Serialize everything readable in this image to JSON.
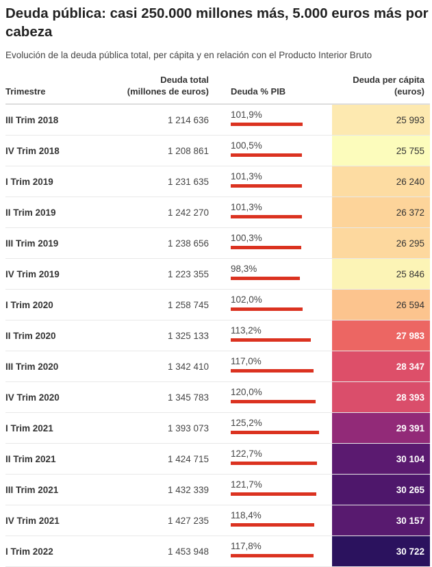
{
  "title": "Deuda pública: casi 250.000 millones más, 5.000 euros más por cabeza",
  "subtitle": "Evolución de la deuda pública total, per cápita y en relación con el Producto Interior Bruto",
  "chart_data": {
    "type": "table",
    "columns": [
      "Trimestre",
      "Deuda total (millones de euros)",
      "Deuda % PIB",
      "Deuda per cápita (euros)"
    ],
    "bar_color": "#db3220",
    "bar_max": 125.2,
    "rows": [
      {
        "q": "III Trim 2018",
        "total": "1 214 636",
        "pib": "101,9%",
        "pib_v": 101.9,
        "pc": "25 993",
        "color": "#fde9b0"
      },
      {
        "q": "IV Trim 2018",
        "total": "1 208 861",
        "pib": "100,5%",
        "pib_v": 100.5,
        "pc": "25 755",
        "color": "#fcfcbc"
      },
      {
        "q": "I Trim 2019",
        "total": "1 231 635",
        "pib": "101,3%",
        "pib_v": 101.3,
        "pc": "26 240",
        "color": "#fddca2"
      },
      {
        "q": "II Trim 2019",
        "total": "1 242 270",
        "pib": "101,3%",
        "pib_v": 101.3,
        "pc": "26 372",
        "color": "#fdd49a"
      },
      {
        "q": "III Trim 2019",
        "total": "1 238 656",
        "pib": "100,3%",
        "pib_v": 100.3,
        "pc": "26 295",
        "color": "#fdd89e"
      },
      {
        "q": "IV Trim 2019",
        "total": "1 223 355",
        "pib": "98,3%",
        "pib_v": 98.3,
        "pc": "25 846",
        "color": "#fcf4b6"
      },
      {
        "q": "I Trim 2020",
        "total": "1 258 745",
        "pib": "102,0%",
        "pib_v": 102.0,
        "pc": "26 594",
        "color": "#fcc48e"
      },
      {
        "q": "II Trim 2020",
        "total": "1 325 133",
        "pib": "113,2%",
        "pib_v": 113.2,
        "pc": "27 983",
        "color": "#ec6663",
        "dark": true
      },
      {
        "q": "III Trim 2020",
        "total": "1 342 410",
        "pib": "117,0%",
        "pib_v": 117.0,
        "pc": "28 347",
        "color": "#dd4f69",
        "dark": true
      },
      {
        "q": "IV Trim 2020",
        "total": "1 345 783",
        "pib": "120,0%",
        "pib_v": 120.0,
        "pc": "28 393",
        "color": "#da4e6b",
        "dark": true
      },
      {
        "q": "I Trim 2021",
        "total": "1 393 073",
        "pib": "125,2%",
        "pib_v": 125.2,
        "pc": "29 391",
        "color": "#922a78",
        "dark": true
      },
      {
        "q": "II Trim 2021",
        "total": "1 424 715",
        "pib": "122,7%",
        "pib_v": 122.7,
        "pc": "30 104",
        "color": "#5b1a70",
        "dark": true
      },
      {
        "q": "III Trim 2021",
        "total": "1 432 339",
        "pib": "121,7%",
        "pib_v": 121.7,
        "pc": "30 265",
        "color": "#4e176b",
        "dark": true
      },
      {
        "q": "IV Trim 2021",
        "total": "1 427 235",
        "pib": "118,4%",
        "pib_v": 118.4,
        "pc": "30 157",
        "color": "#581a6f",
        "dark": true
      },
      {
        "q": "I Trim 2022",
        "total": "1 453 948",
        "pib": "117,8%",
        "pib_v": 117.8,
        "pc": "30 722",
        "color": "#2b125e",
        "dark": true
      }
    ]
  }
}
